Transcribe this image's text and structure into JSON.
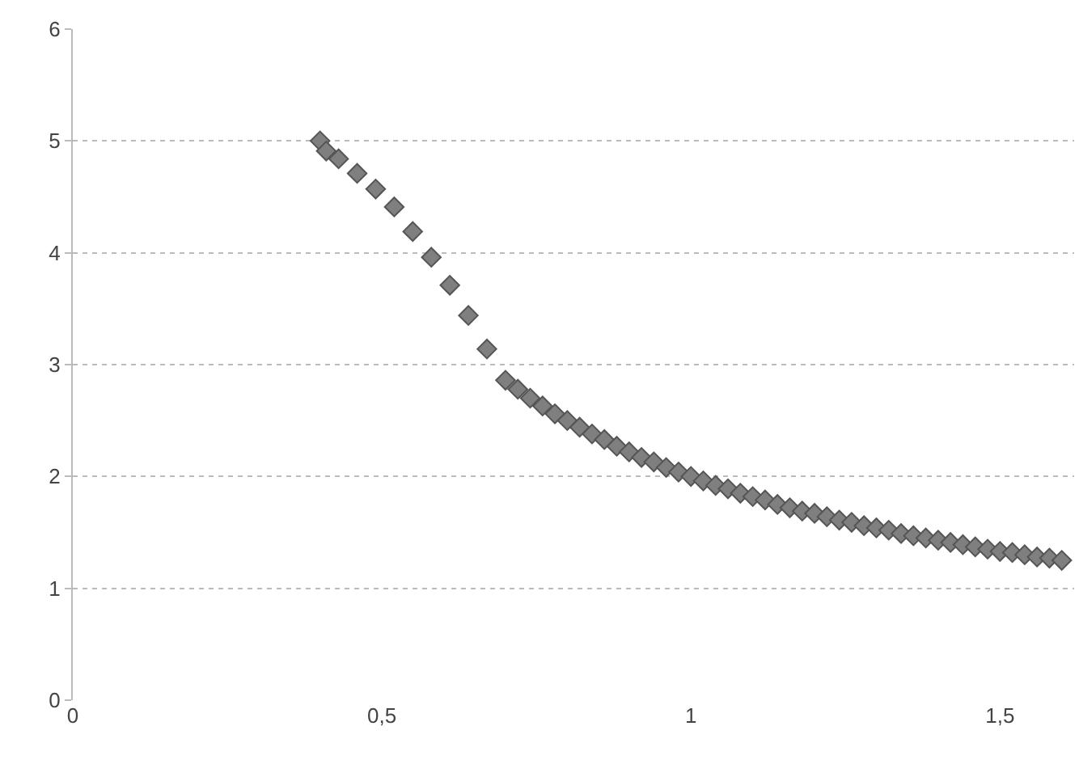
{
  "chart_data": {
    "type": "scatter",
    "marker": "diamond",
    "grid": "y",
    "x": [
      0.4,
      0.41,
      0.43,
      0.46,
      0.49,
      0.52,
      0.55,
      0.58,
      0.61,
      0.64,
      0.67,
      0.7,
      0.72,
      0.74,
      0.76,
      0.78,
      0.8,
      0.82,
      0.84,
      0.86,
      0.88,
      0.9,
      0.92,
      0.94,
      0.96,
      0.98,
      1.0,
      1.02,
      1.04,
      1.06,
      1.08,
      1.1,
      1.12,
      1.14,
      1.16,
      1.18,
      1.2,
      1.22,
      1.24,
      1.26,
      1.28,
      1.3,
      1.32,
      1.34,
      1.36,
      1.38,
      1.4,
      1.42,
      1.44,
      1.46,
      1.48,
      1.5,
      1.52,
      1.54,
      1.56,
      1.58,
      1.6
    ],
    "series": [
      {
        "color": "#7f7f7f",
        "values": [
          5.0,
          4.91,
          4.84,
          4.71,
          4.57,
          4.41,
          4.19,
          3.96,
          3.71,
          3.44,
          3.14,
          2.86,
          2.78,
          2.7,
          2.63,
          2.56,
          2.5,
          2.44,
          2.38,
          2.33,
          2.27,
          2.22,
          2.17,
          2.13,
          2.08,
          2.04,
          2.0,
          1.96,
          1.92,
          1.89,
          1.85,
          1.82,
          1.79,
          1.75,
          1.72,
          1.69,
          1.67,
          1.64,
          1.61,
          1.59,
          1.56,
          1.54,
          1.52,
          1.49,
          1.47,
          1.45,
          1.43,
          1.41,
          1.39,
          1.37,
          1.35,
          1.33,
          1.32,
          1.3,
          1.28,
          1.27,
          1.25
        ]
      }
    ],
    "xlim": [
      0,
      1.62
    ],
    "xticks": [
      0,
      {
        "value": 0.5,
        "label": "0,5"
      },
      1,
      {
        "value": 1.5,
        "label": "1,5"
      }
    ],
    "ylim": [
      0,
      6
    ],
    "yticks": [
      0,
      1,
      2,
      3,
      4,
      5,
      6
    ]
  }
}
